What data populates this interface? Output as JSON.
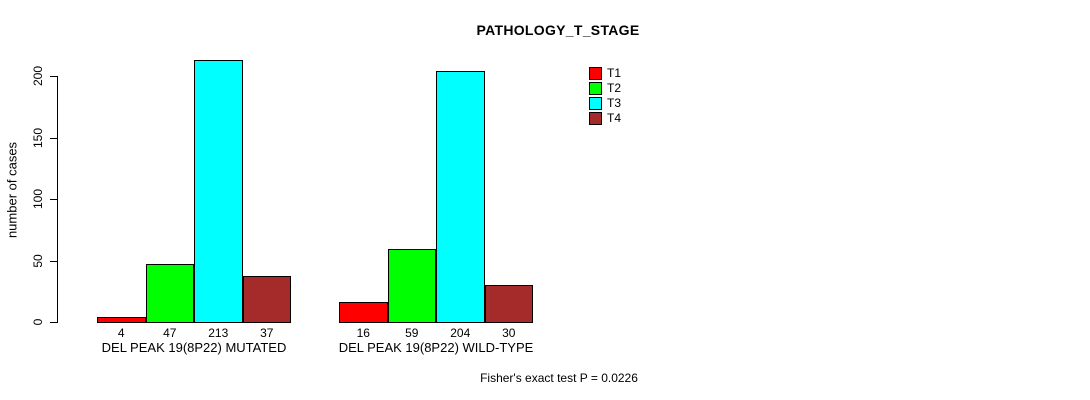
{
  "chart_data": {
    "type": "bar",
    "title": "PATHOLOGY_T_STAGE",
    "xlabel": "",
    "ylabel": "number of cases",
    "ylim": [
      0,
      215
    ],
    "yticks": [
      0,
      50,
      100,
      150,
      200
    ],
    "grid": false,
    "legend_position": "right",
    "bar_borders": true,
    "categories": [
      "DEL PEAK 19(8P22) MUTATED",
      "DEL PEAK 19(8P22) WILD-TYPE"
    ],
    "series": [
      {
        "name": "T1",
        "color": "#ff0000",
        "values": [
          4,
          16
        ]
      },
      {
        "name": "T2",
        "color": "#00ff00",
        "values": [
          47,
          59
        ]
      },
      {
        "name": "T3",
        "color": "#00ffff",
        "values": [
          213,
          204
        ]
      },
      {
        "name": "T4",
        "color": "#a52a2a",
        "values": [
          37,
          30
        ]
      }
    ],
    "annotation": "Fisher's exact test P = 0.0226"
  },
  "colors": {
    "axis": "#000000",
    "text": "#000000",
    "background": "#ffffff"
  }
}
